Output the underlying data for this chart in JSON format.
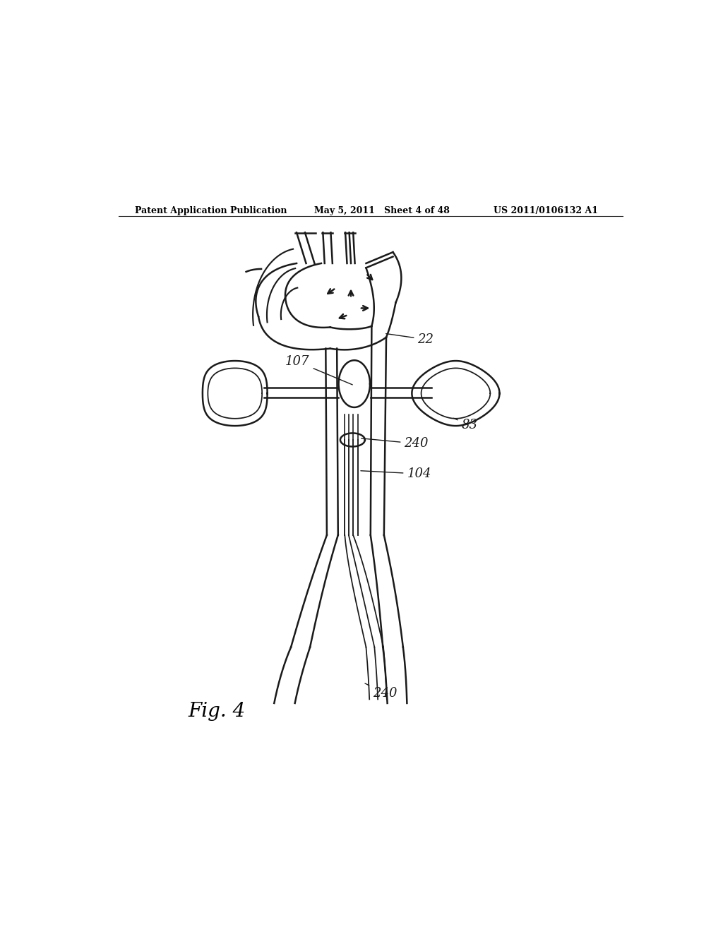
{
  "bg_color": "#ffffff",
  "line_color": "#1a1a1a",
  "line_width": 1.8,
  "header_left": "Patent Application Publication",
  "header_mid": "May 5, 2011   Sheet 4 of 48",
  "header_right": "US 2011/0106132 A1",
  "fig_label": "Fig. 4"
}
